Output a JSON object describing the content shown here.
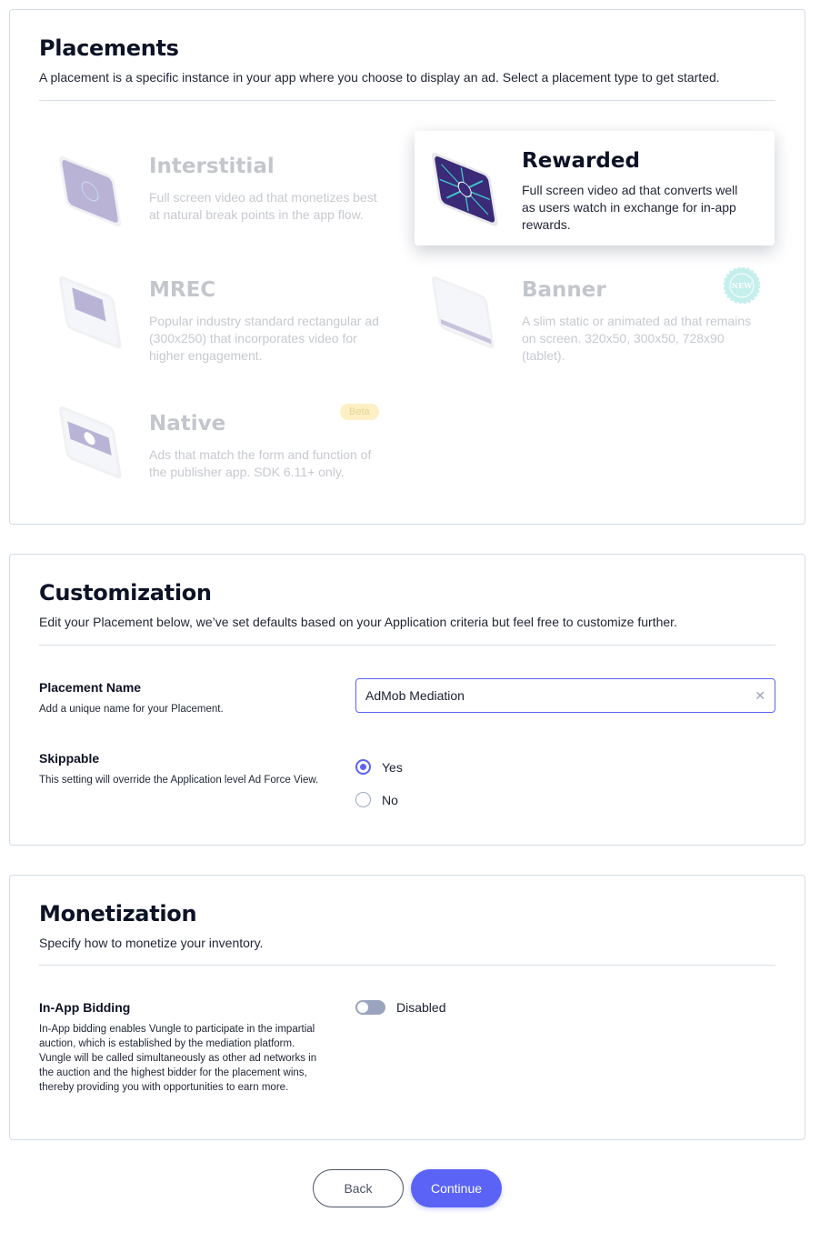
{
  "placements": {
    "title": "Placements",
    "subtitle": "A placement is a specific instance in your app where you choose to display an ad. Select a placement type to get started.",
    "items": [
      {
        "name": "Interstitial",
        "desc": "Full screen video ad that monetizes best at natural break points in the app flow.",
        "selected": false
      },
      {
        "name": "Rewarded",
        "desc": "Full screen video ad that converts well as users watch in exchange for in-app rewards.",
        "selected": true
      },
      {
        "name": "MREC",
        "desc": "Popular industry standard rectangular ad (300x250) that incorporates video for higher engagement.",
        "selected": false
      },
      {
        "name": "Banner",
        "desc": "A slim static or animated ad that remains on screen. 320x50, 300x50, 728x90 (tablet).",
        "selected": false,
        "badge": "NEW"
      },
      {
        "name": "Native",
        "desc": "Ads that match the form and function of the publisher app. SDK 6.11+ only.",
        "selected": false,
        "badge": "Beta"
      }
    ]
  },
  "customization": {
    "title": "Customization",
    "subtitle": "Edit your Placement below, we’ve set defaults based on your Application criteria but feel free to customize further.",
    "name_label": "Placement Name",
    "name_hint": "Add a unique name for your Placement.",
    "name_value": "AdMob Mediation",
    "skippable_label": "Skippable",
    "skippable_hint": "This setting will override the Application level Ad Force View.",
    "options": [
      "Yes",
      "No"
    ],
    "selected": "Yes"
  },
  "monetization": {
    "title": "Monetization",
    "subtitle": "Specify how to monetize your inventory.",
    "bidding_label": "In-App Bidding",
    "bidding_hint": "In-App bidding enables Vungle to participate in the impartial auction, which is established by the mediation platform. Vungle will be called simultaneously as other ad networks in the auction and the highest bidder for the placement wins, thereby providing you with opportunities to earn more.",
    "toggle_state": "Disabled",
    "toggle_on": false
  },
  "actions": {
    "back": "Back",
    "continue": "Continue"
  },
  "colors": {
    "accent": "#5a63f5",
    "border": "#d3dce6"
  }
}
